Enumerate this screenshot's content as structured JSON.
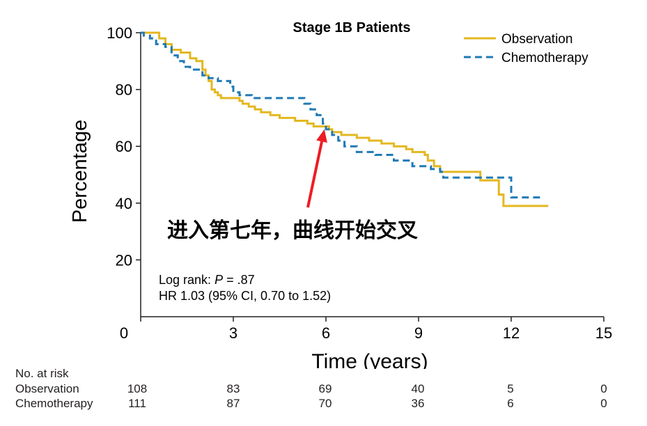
{
  "chart_data": {
    "type": "line",
    "title": "Stage 1B Patients",
    "xlabel": "Time (years)",
    "ylabel": "Percentage",
    "xlim": [
      0,
      15
    ],
    "ylim": [
      0,
      100
    ],
    "xticks": [
      "0",
      "3",
      "6",
      "9",
      "12",
      "15"
    ],
    "yticks": [
      "20",
      "40",
      "60",
      "80",
      "100"
    ],
    "legend_position": "top-right",
    "series": [
      {
        "name": "Observation",
        "color": "#e3b820",
        "style": "solid",
        "points": [
          [
            0,
            100
          ],
          [
            0.35,
            100
          ],
          [
            0.6,
            98
          ],
          [
            0.8,
            96
          ],
          [
            1.0,
            94
          ],
          [
            1.3,
            93
          ],
          [
            1.6,
            91
          ],
          [
            1.8,
            90
          ],
          [
            2.0,
            87
          ],
          [
            2.1,
            85
          ],
          [
            2.2,
            83
          ],
          [
            2.3,
            80
          ],
          [
            2.4,
            79
          ],
          [
            2.5,
            78
          ],
          [
            2.6,
            77
          ],
          [
            3.0,
            77
          ],
          [
            3.2,
            76
          ],
          [
            3.3,
            75
          ],
          [
            3.5,
            74
          ],
          [
            3.7,
            73
          ],
          [
            3.9,
            72
          ],
          [
            4.2,
            71
          ],
          [
            4.5,
            70
          ],
          [
            5.0,
            69
          ],
          [
            5.4,
            68
          ],
          [
            5.6,
            67
          ],
          [
            5.8,
            67
          ],
          [
            6.0,
            67
          ],
          [
            6.1,
            66
          ],
          [
            6.2,
            65
          ],
          [
            6.5,
            64
          ],
          [
            7.0,
            63
          ],
          [
            7.4,
            62
          ],
          [
            7.8,
            61
          ],
          [
            8.2,
            60
          ],
          [
            8.6,
            59
          ],
          [
            8.8,
            58
          ],
          [
            9.2,
            57
          ],
          [
            9.3,
            55
          ],
          [
            9.5,
            53
          ],
          [
            9.7,
            51
          ],
          [
            10.0,
            51
          ],
          [
            10.5,
            51
          ],
          [
            11.0,
            48
          ],
          [
            11.5,
            48
          ],
          [
            11.6,
            43
          ],
          [
            11.75,
            39
          ],
          [
            12.0,
            39
          ],
          [
            12.5,
            39
          ],
          [
            13.0,
            39
          ],
          [
            13.2,
            39
          ]
        ]
      },
      {
        "name": "Chemotherapy",
        "color": "#1f7ab5",
        "style": "dashed",
        "points": [
          [
            0,
            100
          ],
          [
            0.1,
            99
          ],
          [
            0.3,
            98
          ],
          [
            0.5,
            96
          ],
          [
            0.8,
            95
          ],
          [
            1.0,
            92
          ],
          [
            1.2,
            90
          ],
          [
            1.4,
            88
          ],
          [
            1.6,
            87
          ],
          [
            1.8,
            87
          ],
          [
            2.0,
            85
          ],
          [
            2.2,
            84
          ],
          [
            2.5,
            83
          ],
          [
            2.9,
            81
          ],
          [
            3.0,
            79
          ],
          [
            3.2,
            78
          ],
          [
            3.4,
            78
          ],
          [
            3.6,
            77
          ],
          [
            5.2,
            77
          ],
          [
            5.3,
            75
          ],
          [
            5.5,
            73
          ],
          [
            5.7,
            71
          ],
          [
            5.9,
            68
          ],
          [
            6.0,
            66
          ],
          [
            6.2,
            64
          ],
          [
            6.4,
            62
          ],
          [
            6.6,
            60
          ],
          [
            7.0,
            58
          ],
          [
            7.6,
            57
          ],
          [
            8.2,
            55
          ],
          [
            8.8,
            53
          ],
          [
            9.4,
            52
          ],
          [
            9.7,
            51
          ],
          [
            9.8,
            49
          ],
          [
            10.0,
            49
          ],
          [
            10.5,
            49
          ],
          [
            11.0,
            49
          ],
          [
            11.9,
            49
          ],
          [
            12.0,
            42
          ],
          [
            12.5,
            42
          ],
          [
            13.0,
            42
          ]
        ]
      }
    ],
    "annotations": [
      {
        "text": "进入第七年，曲线开始交叉",
        "color": "#000000",
        "arrow_color": "#ee1c24",
        "arrow_tip": [
          5.95,
          66
        ]
      },
      {
        "text_prefix": "Log rank: ",
        "text_italic": "P",
        "text_suffix": " = .87"
      },
      {
        "text": "HR 1.03 (95% CI, 0.70 to 1.52)"
      }
    ]
  },
  "risk_table": {
    "title": "No. at risk",
    "rows": [
      {
        "label": "Observation",
        "values": [
          "108",
          "83",
          "69",
          "40",
          "5",
          "0"
        ]
      },
      {
        "label": "Chemotherapy",
        "values": [
          "111",
          "87",
          "70",
          "36",
          "6",
          "0"
        ]
      }
    ]
  }
}
